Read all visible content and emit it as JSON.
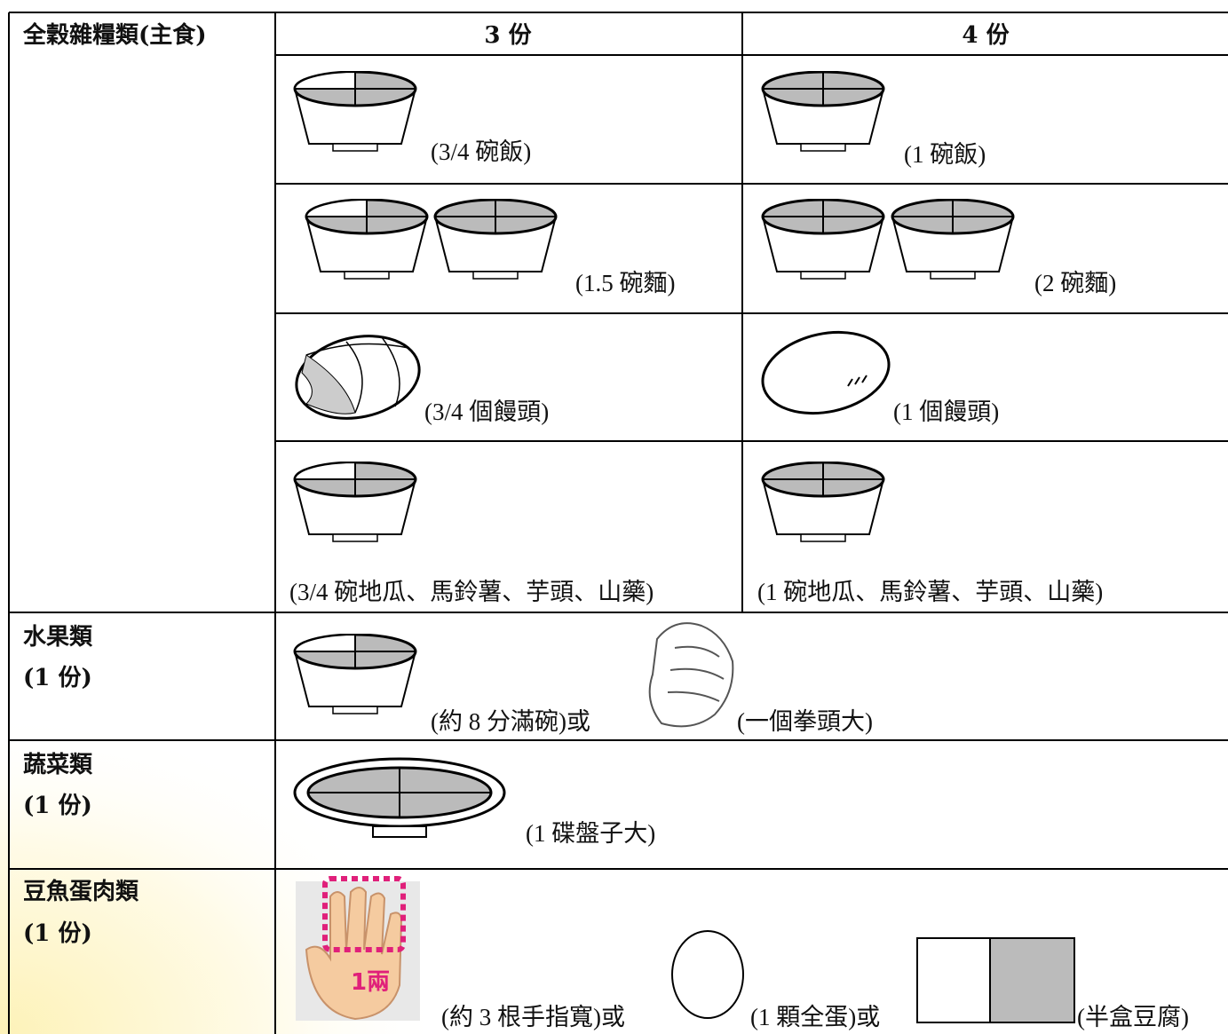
{
  "header": {
    "category": "全穀雜糧類(主食)",
    "col1": "3 份",
    "col2": "4 份"
  },
  "grains": [
    {
      "three": "(3/4 碗飯)",
      "four": "(1 碗飯)"
    },
    {
      "three": "(1.5 碗麵)",
      "four": "(2 碗麵)"
    },
    {
      "three": "(3/4 個饅頭)",
      "four": "(1 個饅頭)"
    },
    {
      "three": "(3/4 碗地瓜、馬鈴薯、芋頭、山藥)",
      "four": "(1 碗地瓜、馬鈴薯、芋頭、山藥)"
    }
  ],
  "fruit": {
    "label": "水果類",
    "portion": "(1 份)",
    "bowl": "(約 8 分滿碗)或",
    "fist": "(一個拳頭大)"
  },
  "vegetable": {
    "label": "蔬菜類",
    "portion": "(1 份)",
    "plate": "(1 碟盤子大)"
  },
  "protein": {
    "label": "豆魚蛋肉類",
    "portion": "(1 份)",
    "hand_label": "1兩",
    "fingers": "(約 3 根手指寬)或",
    "egg": "(1 顆全蛋)或",
    "tofu": "(半盒豆腐)"
  }
}
